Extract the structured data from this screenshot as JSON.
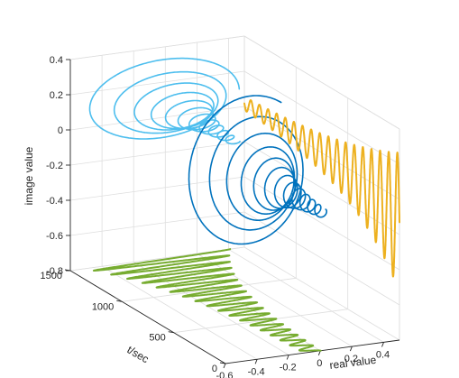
{
  "chart_data": {
    "type": "line",
    "projection": "3d",
    "title": "",
    "xlabel": "real value",
    "ylabel": "t/sec",
    "zlabel": "image value",
    "xlim": [
      -0.6,
      0.5
    ],
    "ylim": [
      0,
      1500
    ],
    "zlim": [
      -0.8,
      0.4
    ],
    "x_ticks": [
      "-0.6",
      "-0.4",
      "-0.2",
      "0",
      "0.2",
      "0.4"
    ],
    "x_tick_values": [
      -0.6,
      -0.4,
      -0.2,
      0,
      0.2,
      0.4
    ],
    "y_ticks": [
      "0",
      "500",
      "1000",
      "1500"
    ],
    "y_tick_values": [
      0,
      500,
      1000,
      1500
    ],
    "z_ticks": [
      "-0.8",
      "-0.6",
      "-0.4",
      "-0.2",
      "0",
      "0.2",
      "0.4"
    ],
    "z_tick_values": [
      -0.8,
      -0.6,
      -0.4,
      -0.2,
      0,
      0.2,
      0.4
    ],
    "grid": true,
    "legend": "none",
    "series": [
      {
        "kind": "trajectory-early",
        "color": "#4dbeee",
        "t_range": [
          750,
          1500
        ],
        "real_start": 0.45,
        "real_end": 0.0,
        "imag_start": -0.45,
        "imag_end": 0.15
      },
      {
        "kind": "trajectory-late",
        "color": "#0072bd",
        "t_range": [
          0,
          750
        ],
        "real_start": 0.3,
        "real_end": -0.15,
        "imag_start": -0.75,
        "imag_end": 0.0
      },
      {
        "kind": "projection-real-vs-t",
        "color": "#77ac30",
        "plane": "image value = -0.8",
        "t_range": [
          0,
          1500
        ]
      },
      {
        "kind": "projection-image-vs-t",
        "color": "#edb120",
        "plane": "real value = 0.5",
        "t_range": [
          0,
          1500
        ]
      }
    ]
  }
}
